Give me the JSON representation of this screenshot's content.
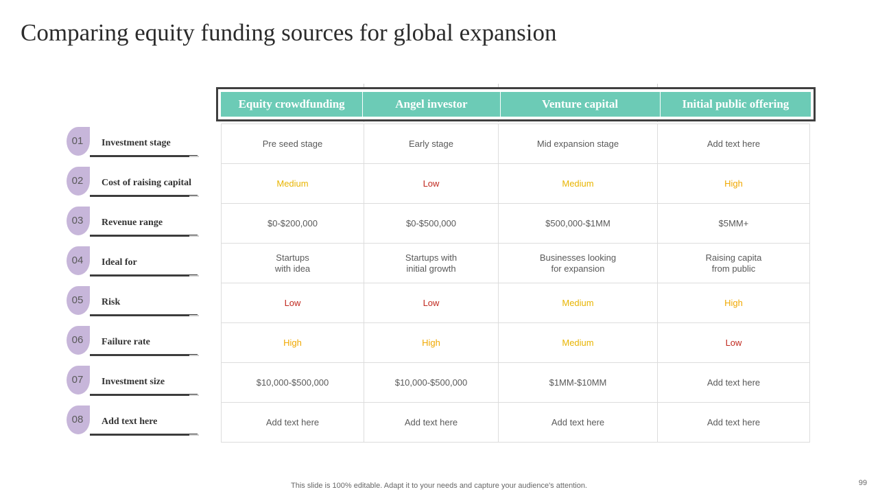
{
  "title": "Comparing equity funding sources for global expansion",
  "columns": [
    "Equity crowdfunding",
    "Angel investor",
    "Venture capital",
    "Initial public offering"
  ],
  "rows": [
    {
      "num": "01",
      "label": "Investment stage",
      "cells": [
        {
          "text": "Pre seed stage",
          "level": ""
        },
        {
          "text": "Early stage",
          "level": ""
        },
        {
          "text": "Mid expansion stage",
          "level": ""
        },
        {
          "text": "Add text here",
          "level": ""
        }
      ]
    },
    {
      "num": "02",
      "label": "Cost of raising capital",
      "cells": [
        {
          "text": "Medium",
          "level": "med"
        },
        {
          "text": "Low",
          "level": "low"
        },
        {
          "text": "Medium",
          "level": "med"
        },
        {
          "text": "High",
          "level": "high"
        }
      ]
    },
    {
      "num": "03",
      "label": "Revenue range",
      "cells": [
        {
          "text": "$0-$200,000",
          "level": ""
        },
        {
          "text": "$0-$500,000",
          "level": ""
        },
        {
          "text": "$500,000-$1MM",
          "level": ""
        },
        {
          "text": "$5MM+",
          "level": ""
        }
      ]
    },
    {
      "num": "04",
      "label": "Ideal for",
      "cells": [
        {
          "text": "Startups\nwith idea",
          "level": ""
        },
        {
          "text": "Startups with\ninitial growth",
          "level": ""
        },
        {
          "text": "Businesses looking\nfor expansion",
          "level": ""
        },
        {
          "text": "Raising capita\nfrom public",
          "level": ""
        }
      ]
    },
    {
      "num": "05",
      "label": "Risk",
      "cells": [
        {
          "text": "Low",
          "level": "low"
        },
        {
          "text": "Low",
          "level": "low"
        },
        {
          "text": "Medium",
          "level": "med"
        },
        {
          "text": "High",
          "level": "high"
        }
      ]
    },
    {
      "num": "06",
      "label": "Failure rate",
      "cells": [
        {
          "text": "High",
          "level": "high"
        },
        {
          "text": "High",
          "level": "high"
        },
        {
          "text": "Medium",
          "level": "med"
        },
        {
          "text": "Low",
          "level": "low"
        }
      ]
    },
    {
      "num": "07",
      "label": "Investment size",
      "cells": [
        {
          "text": "$10,000-$500,000",
          "level": ""
        },
        {
          "text": "$10,000-$500,000",
          "level": ""
        },
        {
          "text": "$1MM-$10MM",
          "level": ""
        },
        {
          "text": "Add text here",
          "level": ""
        }
      ]
    },
    {
      "num": "08",
      "label": "Add text here",
      "cells": [
        {
          "text": "Add text here",
          "level": ""
        },
        {
          "text": "Add text here",
          "level": ""
        },
        {
          "text": "Add text here",
          "level": ""
        },
        {
          "text": "Add text here",
          "level": ""
        }
      ]
    }
  ],
  "footer": "This slide is 100% editable. Adapt it to your needs and capture your audience's attention.",
  "page_number": "99",
  "colors": {
    "header": "#6ccbb6",
    "badge": "#c7b6da",
    "low": "#c0281e",
    "medium": "#e8b400",
    "high": "#f0a800"
  }
}
